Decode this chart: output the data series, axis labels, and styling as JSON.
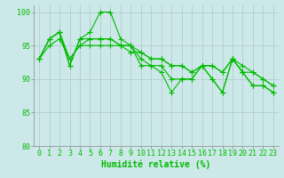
{
  "title": "",
  "xlabel": "Humidité relative (%)",
  "ylabel": "",
  "bg_color": "#cce8e8",
  "grid_color": "#b0c8c8",
  "line_color": "#00bb00",
  "marker": "+",
  "markersize": 4,
  "linewidth": 0.8,
  "ylim": [
    80,
    101
  ],
  "xlim": [
    -0.5,
    23.5
  ],
  "yticks": [
    80,
    85,
    90,
    95,
    100
  ],
  "xticks": [
    0,
    1,
    2,
    3,
    4,
    5,
    6,
    7,
    8,
    9,
    10,
    11,
    12,
    13,
    14,
    15,
    16,
    17,
    18,
    19,
    20,
    21,
    22,
    23
  ],
  "series": [
    [
      93,
      96,
      97,
      92,
      96,
      97,
      100,
      100,
      96,
      95,
      92,
      92,
      91,
      88,
      90,
      90,
      92,
      90,
      88,
      93,
      91,
      89,
      89,
      88
    ],
    [
      93,
      96,
      97,
      92,
      96,
      96,
      96,
      96,
      95,
      95,
      93,
      92,
      92,
      90,
      90,
      90,
      92,
      90,
      88,
      93,
      91,
      89,
      89,
      88
    ],
    [
      93,
      96,
      97,
      93,
      95,
      96,
      96,
      96,
      95,
      95,
      94,
      93,
      93,
      92,
      92,
      91,
      92,
      92,
      91,
      93,
      92,
      91,
      90,
      89
    ],
    [
      93,
      95,
      96,
      93,
      95,
      95,
      95,
      95,
      95,
      94,
      94,
      93,
      93,
      92,
      92,
      91,
      92,
      92,
      91,
      93,
      91,
      91,
      90,
      89
    ]
  ],
  "xlabel_color": "#00bb00",
  "xlabel_fontsize": 7,
  "tick_fontsize": 6,
  "tick_color": "#00bb00"
}
